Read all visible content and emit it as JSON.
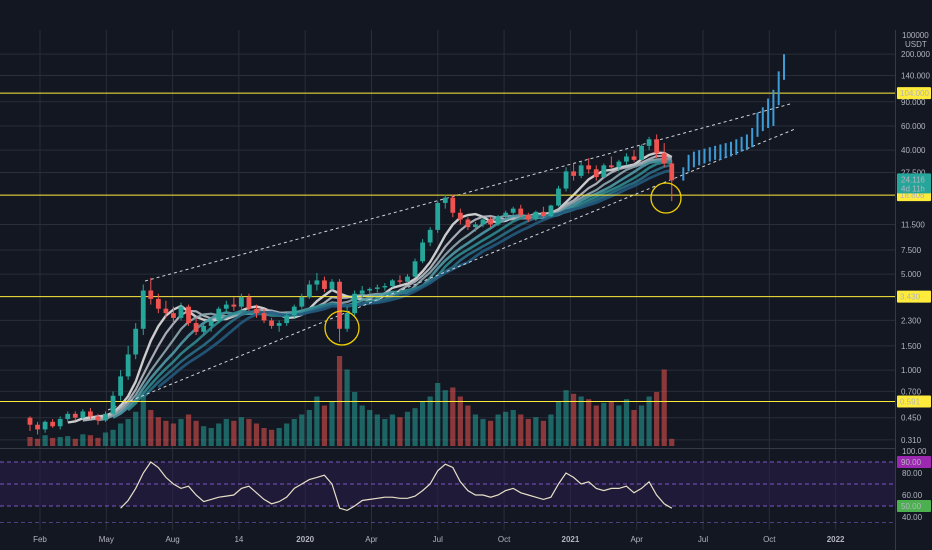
{
  "colors": {
    "background": "#131722",
    "grid": "#2a2e39",
    "up": "#26a69a",
    "down": "#ef5350",
    "projection": "#3d9bd6",
    "level": "#ffeb3b",
    "rsi_line": "#e8e0c8",
    "rsi_band": "#2a1e4a",
    "rsi_upper_tag": "#9c27b0",
    "rsi_lower_tag": "#4caf50"
  },
  "chart_data": [
    {
      "type": "line",
      "subtype": "candlestick",
      "log_scale": true,
      "currency": "USDT",
      "price_axis_top_label": "100000",
      "x_tick_labels": [
        "Feb",
        "May",
        "Aug",
        "14",
        "2020",
        "Apr",
        "Jul",
        "Oct",
        "2021",
        "Apr",
        "Jul",
        "Oct",
        "2022"
      ],
      "y_tick_labels": [
        "200.000",
        "140.000",
        "90.000",
        "60.000",
        "40.000",
        "27.500",
        "11.500",
        "7.500",
        "5.000",
        "2.300",
        "1.500",
        "1.000",
        "0.700",
        "0.450",
        "0.310"
      ],
      "ylim": [
        0.28,
        300
      ],
      "price_tags": [
        "104.000",
        "18.808",
        "3.430",
        "0.591"
      ],
      "current_price": "24.116",
      "countdown": "4d 11h",
      "horizontal_levels": [
        104,
        18.808,
        3.43,
        0.591
      ],
      "period_start": "2019-01",
      "period_step": "2 weeks",
      "candles": [
        [
          0.45,
          0.46,
          0.36,
          0.4
        ],
        [
          0.4,
          0.42,
          0.34,
          0.37
        ],
        [
          0.37,
          0.43,
          0.35,
          0.42
        ],
        [
          0.42,
          0.44,
          0.38,
          0.39
        ],
        [
          0.39,
          0.46,
          0.37,
          0.44
        ],
        [
          0.44,
          0.5,
          0.42,
          0.48
        ],
        [
          0.48,
          0.5,
          0.43,
          0.45
        ],
        [
          0.45,
          0.52,
          0.44,
          0.5
        ],
        [
          0.5,
          0.53,
          0.44,
          0.46
        ],
        [
          0.46,
          0.48,
          0.4,
          0.43
        ],
        [
          0.43,
          0.5,
          0.42,
          0.48
        ],
        [
          0.48,
          0.7,
          0.47,
          0.65
        ],
        [
          0.65,
          1.0,
          0.6,
          0.9
        ],
        [
          0.9,
          1.5,
          0.85,
          1.3
        ],
        [
          1.3,
          2.2,
          1.2,
          2.0
        ],
        [
          2.0,
          4.2,
          1.8,
          3.8
        ],
        [
          3.8,
          4.7,
          3.0,
          3.3
        ],
        [
          3.3,
          3.6,
          2.6,
          2.8
        ],
        [
          2.8,
          3.2,
          2.4,
          2.6
        ],
        [
          2.6,
          2.9,
          2.2,
          2.4
        ],
        [
          2.4,
          3.1,
          2.3,
          2.9
        ],
        [
          2.9,
          3.0,
          2.1,
          2.2
        ],
        [
          2.2,
          2.4,
          1.8,
          1.9
        ],
        [
          1.9,
          2.2,
          1.8,
          2.1
        ],
        [
          2.1,
          2.4,
          1.9,
          2.3
        ],
        [
          2.3,
          2.9,
          2.2,
          2.8
        ],
        [
          2.8,
          3.2,
          2.6,
          3.0
        ],
        [
          3.0,
          3.4,
          2.7,
          2.9
        ],
        [
          2.9,
          3.6,
          2.8,
          3.4
        ],
        [
          3.4,
          3.6,
          2.7,
          2.8
        ],
        [
          2.8,
          3.0,
          2.4,
          2.6
        ],
        [
          2.6,
          2.8,
          2.2,
          2.3
        ],
        [
          2.3,
          2.4,
          2.0,
          2.1
        ],
        [
          2.1,
          2.3,
          1.9,
          2.2
        ],
        [
          2.2,
          2.6,
          2.1,
          2.5
        ],
        [
          2.5,
          3.0,
          2.4,
          2.9
        ],
        [
          2.9,
          3.6,
          2.8,
          3.4
        ],
        [
          3.4,
          4.5,
          3.3,
          4.2
        ],
        [
          4.2,
          5.1,
          3.8,
          4.5
        ],
        [
          4.5,
          4.8,
          3.7,
          3.9
        ],
        [
          3.9,
          4.6,
          3.8,
          4.4
        ],
        [
          4.4,
          4.6,
          1.6,
          2.0
        ],
        [
          2.0,
          2.9,
          1.9,
          2.6
        ],
        [
          2.6,
          3.8,
          2.5,
          3.6
        ],
        [
          3.6,
          4.1,
          3.4,
          3.8
        ],
        [
          3.8,
          4.0,
          3.5,
          3.9
        ],
        [
          3.9,
          4.2,
          3.7,
          4.0
        ],
        [
          4.0,
          4.3,
          3.8,
          4.1
        ],
        [
          4.1,
          4.6,
          4.0,
          4.5
        ],
        [
          4.5,
          4.9,
          4.2,
          4.4
        ],
        [
          4.4,
          5.0,
          4.3,
          4.8
        ],
        [
          4.8,
          6.5,
          4.7,
          6.2
        ],
        [
          6.2,
          9.0,
          6.0,
          8.5
        ],
        [
          8.5,
          11.0,
          8.0,
          10.5
        ],
        [
          10.5,
          17.0,
          10.0,
          16.5
        ],
        [
          16.5,
          19.0,
          15.0,
          18.0
        ],
        [
          18.0,
          19.0,
          13.0,
          14.0
        ],
        [
          14.0,
          15.0,
          11.5,
          12.5
        ],
        [
          12.5,
          13.0,
          10.5,
          11.0
        ],
        [
          11.0,
          12.0,
          10.2,
          11.5
        ],
        [
          11.5,
          12.8,
          11.0,
          12.5
        ],
        [
          12.5,
          13.0,
          11.0,
          11.5
        ],
        [
          11.5,
          13.5,
          11.2,
          13.2
        ],
        [
          13.2,
          14.5,
          12.8,
          14.0
        ],
        [
          14.0,
          15.5,
          13.5,
          15.0
        ],
        [
          15.0,
          16.0,
          13.0,
          13.5
        ],
        [
          13.5,
          14.0,
          12.0,
          12.5
        ],
        [
          12.5,
          14.5,
          12.2,
          14.2
        ],
        [
          14.2,
          15.5,
          12.8,
          13.2
        ],
        [
          13.2,
          16.0,
          13.0,
          15.8
        ],
        [
          15.8,
          22.0,
          15.5,
          21.0
        ],
        [
          21.0,
          30.0,
          20.0,
          28.0
        ],
        [
          28.0,
          32.0,
          24.0,
          26.0
        ],
        [
          26.0,
          33.0,
          25.0,
          31.0
        ],
        [
          31.0,
          35.0,
          27.0,
          29.0
        ],
        [
          29.0,
          31.0,
          24.0,
          25.5
        ],
        [
          25.5,
          32.0,
          25.0,
          31.0
        ],
        [
          31.0,
          36.0,
          29.0,
          30.0
        ],
        [
          30.0,
          34.0,
          28.0,
          33.0
        ],
        [
          33.0,
          38.0,
          31.0,
          36.0
        ],
        [
          36.0,
          40.0,
          33.0,
          34.0
        ],
        [
          34.0,
          44.0,
          33.5,
          43.0
        ],
        [
          43.0,
          50.0,
          40.0,
          48.0
        ],
        [
          48.0,
          52.0,
          35.0,
          38.0
        ],
        [
          38.0,
          45.0,
          30.0,
          32.0
        ],
        [
          32.0,
          34.0,
          17.0,
          24.11
        ]
      ],
      "volumes": [
        0.1,
        0.08,
        0.12,
        0.09,
        0.1,
        0.11,
        0.08,
        0.13,
        0.12,
        0.09,
        0.15,
        0.18,
        0.25,
        0.3,
        0.38,
        0.55,
        0.4,
        0.32,
        0.28,
        0.25,
        0.3,
        0.35,
        0.28,
        0.22,
        0.2,
        0.25,
        0.3,
        0.28,
        0.32,
        0.3,
        0.25,
        0.2,
        0.18,
        0.2,
        0.25,
        0.3,
        0.35,
        0.4,
        0.55,
        0.45,
        0.5,
        1.0,
        0.85,
        0.6,
        0.45,
        0.4,
        0.35,
        0.3,
        0.35,
        0.32,
        0.38,
        0.42,
        0.5,
        0.55,
        0.7,
        0.62,
        0.65,
        0.55,
        0.45,
        0.35,
        0.3,
        0.28,
        0.35,
        0.38,
        0.4,
        0.35,
        0.3,
        0.32,
        0.28,
        0.35,
        0.5,
        0.62,
        0.58,
        0.55,
        0.52,
        0.45,
        0.48,
        0.5,
        0.45,
        0.52,
        0.4,
        0.45,
        0.55,
        0.6,
        0.85,
        0.08
      ],
      "projection_bars": [
        [
          24,
          30
        ],
        [
          28,
          37
        ],
        [
          30,
          39
        ],
        [
          31,
          40
        ],
        [
          32,
          41
        ],
        [
          33,
          42
        ],
        [
          34,
          43
        ],
        [
          34,
          44
        ],
        [
          35,
          45
        ],
        [
          36,
          46
        ],
        [
          37,
          48
        ],
        [
          39,
          50
        ],
        [
          40,
          52
        ],
        [
          42,
          58
        ],
        [
          50,
          75
        ],
        [
          55,
          82
        ],
        [
          58,
          95
        ],
        [
          60,
          110
        ],
        [
          85,
          150
        ],
        [
          130,
          200
        ]
      ],
      "annotations": [
        "dashed rising channel",
        "ribbon of moving averages",
        "yellow circles at dips"
      ]
    },
    {
      "type": "line",
      "indicator": "RSI",
      "ylim": [
        30,
        100
      ],
      "y_tick_labels": [
        "100.00",
        "80.00",
        "60.00",
        "40.00"
      ],
      "band_labels": [
        "90.00",
        "50.00"
      ],
      "bands": [
        90,
        70,
        50
      ],
      "values": [
        null,
        null,
        null,
        null,
        null,
        null,
        null,
        null,
        null,
        null,
        null,
        null,
        48,
        55,
        66,
        80,
        90,
        85,
        76,
        70,
        66,
        68,
        60,
        54,
        56,
        58,
        59,
        60,
        66,
        68,
        62,
        56,
        52,
        54,
        58,
        66,
        70,
        74,
        76,
        78,
        70,
        48,
        46,
        50,
        55,
        56,
        57,
        58,
        58,
        57,
        57,
        59,
        64,
        70,
        82,
        88,
        85,
        72,
        64,
        60,
        60,
        58,
        60,
        64,
        66,
        62,
        60,
        58,
        56,
        58,
        70,
        80,
        76,
        70,
        72,
        66,
        64,
        66,
        66,
        68,
        62,
        66,
        72,
        60,
        52,
        48
      ]
    }
  ]
}
